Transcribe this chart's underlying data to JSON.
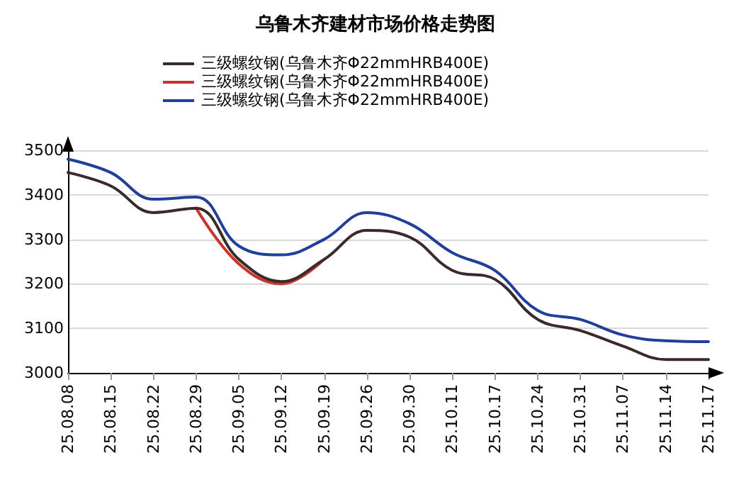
{
  "chart_data": {
    "type": "line",
    "title": "乌鲁木齐建材市场价格走势图",
    "categories": [
      "25.08.08",
      "25.08.15",
      "25.08.22",
      "25.08.29",
      "25.09.05",
      "25.09.12",
      "25.09.19",
      "25.09.26",
      "25.09.30",
      "25.10.11",
      "25.10.17",
      "25.10.24",
      "25.10.31",
      "25.11.07",
      "25.11.14",
      "25.11.17"
    ],
    "series": [
      {
        "name": "三级螺纹钢(乌鲁木齐Φ22mmHRB400E)",
        "color": "#3b2a2a",
        "values": [
          3450,
          3420,
          3360,
          3370,
          3255,
          3205,
          3255,
          3320,
          3305,
          3230,
          3210,
          3120,
          3095,
          3060,
          3030,
          3030
        ]
      },
      {
        "name": "三级螺纹钢(乌鲁木齐Φ22mmHRB400E)",
        "color": "#c8352d",
        "values": [
          null,
          null,
          null,
          3370,
          3245,
          3200,
          3255,
          null,
          null,
          null,
          null,
          null,
          null,
          null,
          null,
          null
        ]
      },
      {
        "name": "三级螺纹钢(乌鲁木齐Φ22mmHRB400E)",
        "color": "#1f3f9a",
        "values": [
          3480,
          3450,
          3390,
          3395,
          3285,
          3265,
          3300,
          3360,
          3335,
          3270,
          3230,
          3140,
          3120,
          3085,
          3072,
          3070
        ]
      }
    ],
    "ylim": [
      3000,
      3500
    ],
    "yticks": [
      3000,
      3100,
      3200,
      3300,
      3400,
      3500
    ],
    "grid": "y",
    "legend": "top",
    "marker": "none",
    "line_style": "solid"
  }
}
